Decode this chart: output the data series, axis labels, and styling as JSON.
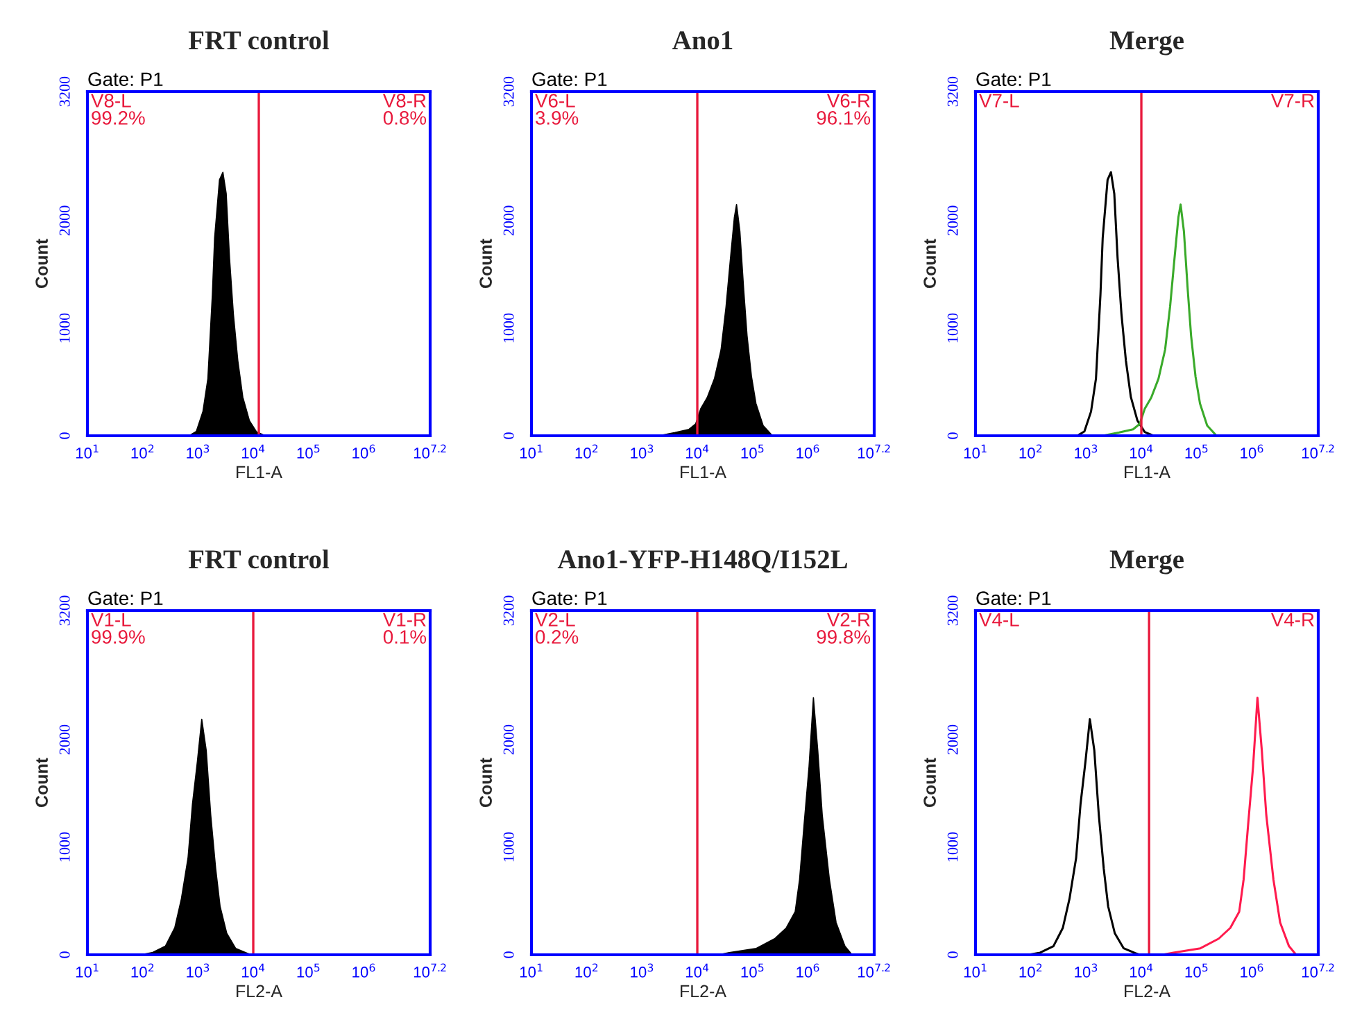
{
  "chart_data": [
    {
      "type": "area",
      "title": "FRT control",
      "xlabel": "FL1-A",
      "ylabel": "Count",
      "log": "x",
      "xlim": [
        10,
        15848932
      ],
      "xticks": [
        {
          "value": 10,
          "label": "10$^{1}$"
        },
        {
          "value": 100,
          "label": "10$^{2}$"
        },
        {
          "value": 1000,
          "label": "10$^{3}$"
        },
        {
          "value": 10000,
          "label": "10$^{4}$"
        },
        {
          "value": 100000,
          "label": "10$^{5}$"
        },
        {
          "value": 1000000,
          "label": "10$^{6}$"
        },
        {
          "value": 15848932,
          "label": "10$^{7.2}$"
        }
      ],
      "ylim": [
        0,
        3200
      ],
      "yticks": [
        0,
        1000,
        2000,
        3200
      ],
      "series": [
        {
          "color": "#000000",
          "x": [
            692,
            933,
            1230,
            1510,
            1820,
            2000,
            2450,
            2820,
            3240,
            3720,
            4370,
            5250,
            6460,
            8510,
            11500,
            16600
          ],
          "values": [
            0,
            40,
            225,
            530,
            1310,
            1840,
            2380,
            2450,
            2250,
            1650,
            1130,
            700,
            360,
            140,
            35,
            0
          ]
        }
      ],
      "ref_lines": [
        {
          "axis": "x",
          "value": 12600,
          "color": "#e8193c"
        }
      ],
      "annotations": [
        "Gate: P1",
        "V8-L\n99.2%",
        "V8-R\n0.8%"
      ]
    },
    {
      "type": "area",
      "title": "Ano1",
      "xlabel": "FL1-A",
      "ylabel": "Count",
      "log": "x",
      "xlim": [
        10,
        15848932
      ],
      "xticks": [
        {
          "value": 10,
          "label": "10$^{1}$"
        },
        {
          "value": 100,
          "label": "10$^{2}$"
        },
        {
          "value": 1000,
          "label": "10$^{3}$"
        },
        {
          "value": 10000,
          "label": "10$^{4}$"
        },
        {
          "value": 100000,
          "label": "10$^{5}$"
        },
        {
          "value": 1000000,
          "label": "10$^{6}$"
        },
        {
          "value": 15848932,
          "label": "10$^{7.2}$"
        }
      ],
      "ylim": [
        0,
        3200
      ],
      "yticks": [
        0,
        1000,
        2000,
        3200
      ],
      "series": [
        {
          "color": "#000000",
          "x": [
            2000,
            3980,
            7080,
            9330,
            11500,
            15100,
            20400,
            26900,
            33100,
            39800,
            46800,
            51300,
            58900,
            69200,
            79400,
            95500,
            115000,
            155000,
            229000
          ],
          "values": [
            0,
            30,
            60,
            110,
            250,
            355,
            530,
            800,
            1200,
            1650,
            2030,
            2150,
            1900,
            1350,
            930,
            550,
            300,
            95,
            0
          ]
        }
      ],
      "ref_lines": [
        {
          "axis": "x",
          "value": 10000,
          "color": "#e8193c"
        }
      ],
      "annotations": [
        "Gate: P1",
        "V6-L\n3.9%",
        "V6-R\n96.1%"
      ]
    },
    {
      "type": "line",
      "title": "Merge",
      "xlabel": "FL1-A",
      "ylabel": "Count",
      "log": "x",
      "xlim": [
        10,
        15848932
      ],
      "xticks": [
        {
          "value": 10,
          "label": "10$^{1}$"
        },
        {
          "value": 100,
          "label": "10$^{2}$"
        },
        {
          "value": 1000,
          "label": "10$^{3}$"
        },
        {
          "value": 10000,
          "label": "10$^{4}$"
        },
        {
          "value": 100000,
          "label": "10$^{5}$"
        },
        {
          "value": 1000000,
          "label": "10$^{6}$"
        },
        {
          "value": 15848932,
          "label": "10$^{7.2}$"
        }
      ],
      "ylim": [
        0,
        3200
      ],
      "yticks": [
        0,
        1000,
        2000,
        3200
      ],
      "series": [
        {
          "color": "#000000",
          "x": [
            10,
            692,
            933,
            1230,
            1510,
            1820,
            2000,
            2450,
            2820,
            3240,
            3720,
            4370,
            5250,
            6460,
            8510,
            11500,
            16600,
            100000
          ],
          "values": [
            0,
            0,
            40,
            225,
            530,
            1310,
            1840,
            2380,
            2450,
            2250,
            1650,
            1130,
            700,
            360,
            140,
            35,
            0,
            0
          ]
        },
        {
          "color": "#3aaa2a",
          "x": [
            1000,
            2000,
            3980,
            7080,
            9330,
            11500,
            15100,
            20400,
            26900,
            33100,
            39800,
            46800,
            51300,
            58900,
            69200,
            79400,
            95500,
            115000,
            155000,
            229000,
            15848932
          ],
          "values": [
            0,
            0,
            30,
            60,
            110,
            250,
            355,
            530,
            800,
            1200,
            1650,
            2030,
            2150,
            1900,
            1350,
            930,
            550,
            300,
            95,
            0,
            0
          ]
        }
      ],
      "ref_lines": [
        {
          "axis": "x",
          "value": 10000,
          "color": "#e8193c"
        }
      ],
      "annotations": [
        "Gate: P1",
        "V7-L",
        "V7-R"
      ]
    },
    {
      "type": "area",
      "title": "FRT control",
      "xlabel": "FL2-A",
      "ylabel": "Count",
      "log": "x",
      "xlim": [
        10,
        15848932
      ],
      "xticks": [
        {
          "value": 10,
          "label": "10$^{1}$"
        },
        {
          "value": 100,
          "label": "10$^{2}$"
        },
        {
          "value": 1000,
          "label": "10$^{3}$"
        },
        {
          "value": 10000,
          "label": "10$^{4}$"
        },
        {
          "value": 100000,
          "label": "10$^{5}$"
        },
        {
          "value": 1000000,
          "label": "10$^{6}$"
        },
        {
          "value": 15848932,
          "label": "10$^{7.2}$"
        }
      ],
      "ylim": [
        0,
        3200
      ],
      "yticks": [
        0,
        1000,
        2000,
        3200
      ],
      "series": [
        {
          "color": "#000000",
          "x": [
            91,
            148,
            257,
            380,
            501,
            661,
            794,
            977,
            1170,
            1410,
            1700,
            2090,
            2510,
            3310,
            4790,
            7760,
            9330
          ],
          "values": [
            0,
            20,
            80,
            250,
            520,
            900,
            1400,
            1800,
            2190,
            1900,
            1300,
            800,
            450,
            200,
            60,
            15,
            0
          ]
        }
      ],
      "ref_lines": [
        {
          "axis": "x",
          "value": 10000,
          "color": "#e8193c"
        }
      ],
      "annotations": [
        "Gate: P1",
        "V1-L\n99.9%",
        "V1-R\n0.1%"
      ]
    },
    {
      "type": "area",
      "title": "Ano1-YFP-H148Q/I152L",
      "xlabel": "FL2-A",
      "ylabel": "Count",
      "log": "x",
      "xlim": [
        10,
        15848932
      ],
      "xticks": [
        {
          "value": 10,
          "label": "10$^{1}$"
        },
        {
          "value": 100,
          "label": "10$^{2}$"
        },
        {
          "value": 1000,
          "label": "10$^{3}$"
        },
        {
          "value": 10000,
          "label": "10$^{4}$"
        },
        {
          "value": 100000,
          "label": "10$^{5}$"
        },
        {
          "value": 1000000,
          "label": "10$^{6}$"
        },
        {
          "value": 15848932,
          "label": "10$^{7.2}$"
        }
      ],
      "ylim": [
        0,
        3200
      ],
      "yticks": [
        0,
        1000,
        2000,
        3200
      ],
      "series": [
        {
          "color": "#000000",
          "x": [
            24000,
            38000,
            117000,
            251000,
            407000,
            589000,
            708000,
            851000,
            1050000,
            1260000,
            1510000,
            1820000,
            2450000,
            3240000,
            4680000,
            6310000
          ],
          "values": [
            0,
            20,
            60,
            150,
            250,
            400,
            700,
            1200,
            1750,
            2390,
            1900,
            1300,
            700,
            300,
            80,
            0
          ]
        }
      ],
      "ref_lines": [
        {
          "axis": "x",
          "value": 10000,
          "color": "#e8193c"
        }
      ],
      "annotations": [
        "Gate: P1",
        "V2-L\n0.2%",
        "V2-R\n99.8%"
      ]
    },
    {
      "type": "line",
      "title": "Merge",
      "xlabel": "FL2-A",
      "ylabel": "Count",
      "log": "x",
      "xlim": [
        10,
        15848932
      ],
      "xticks": [
        {
          "value": 10,
          "label": "10$^{1}$"
        },
        {
          "value": 100,
          "label": "10$^{2}$"
        },
        {
          "value": 1000,
          "label": "10$^{3}$"
        },
        {
          "value": 10000,
          "label": "10$^{4}$"
        },
        {
          "value": 100000,
          "label": "10$^{5}$"
        },
        {
          "value": 1000000,
          "label": "10$^{6}$"
        },
        {
          "value": 15848932,
          "label": "10$^{7.2}$"
        }
      ],
      "ylim": [
        0,
        3200
      ],
      "yticks": [
        0,
        1000,
        2000,
        3200
      ],
      "series": [
        {
          "color": "#000000",
          "x": [
            10,
            91,
            148,
            257,
            380,
            501,
            661,
            794,
            977,
            1170,
            1410,
            1700,
            2090,
            2510,
            3310,
            4790,
            7760,
            9330,
            20000
          ],
          "values": [
            0,
            0,
            20,
            80,
            250,
            520,
            900,
            1400,
            1800,
            2190,
            1900,
            1300,
            800,
            450,
            200,
            60,
            15,
            0,
            0
          ]
        },
        {
          "color": "#ff1a4d",
          "x": [
            1000,
            24000,
            38000,
            117000,
            251000,
            407000,
            589000,
            708000,
            851000,
            1050000,
            1260000,
            1510000,
            1820000,
            2450000,
            3240000,
            4680000,
            6310000,
            15848932
          ],
          "values": [
            0,
            0,
            20,
            60,
            150,
            250,
            400,
            700,
            1200,
            1750,
            2390,
            1900,
            1300,
            700,
            300,
            80,
            0,
            0
          ]
        }
      ],
      "ref_lines": [
        {
          "axis": "x",
          "value": 13800,
          "color": "#e8193c"
        }
      ],
      "annotations": [
        "Gate: P1",
        "V4-L",
        "V4-R"
      ]
    }
  ]
}
